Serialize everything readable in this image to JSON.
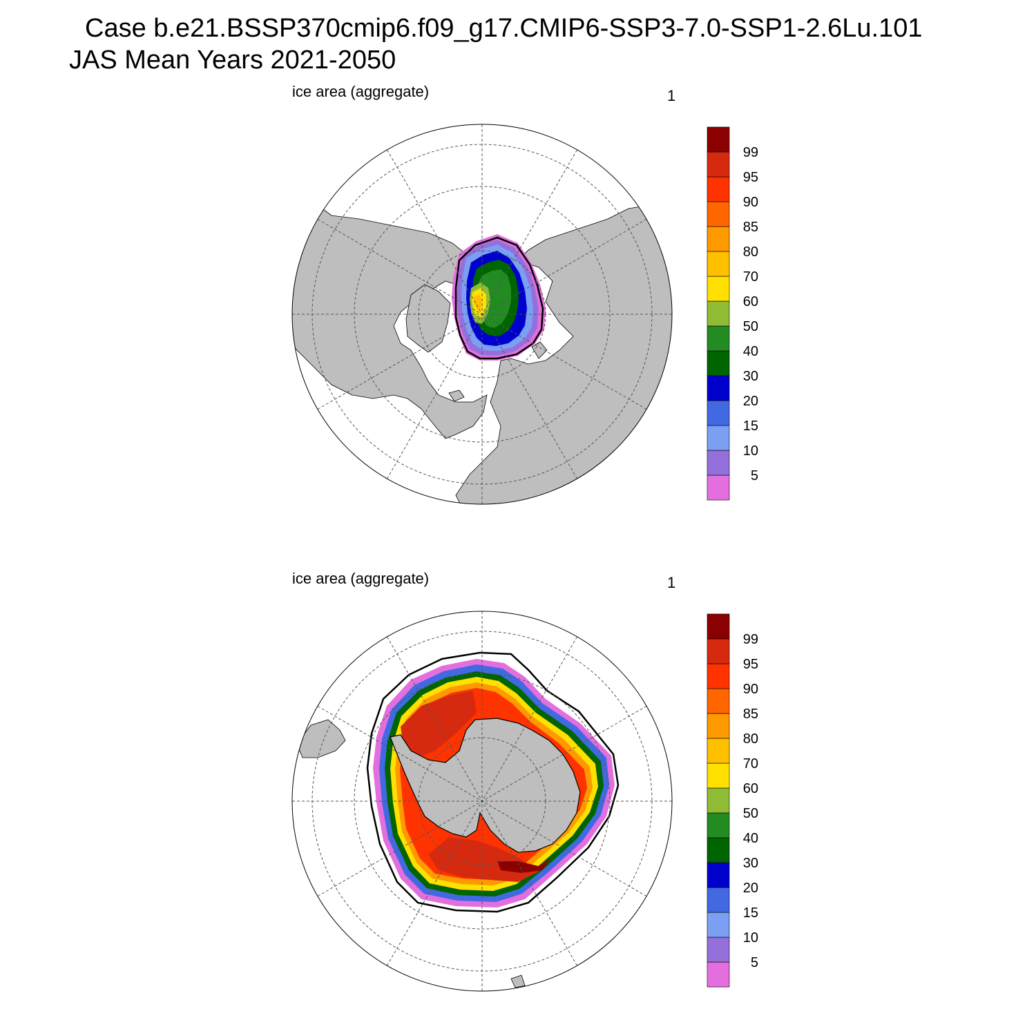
{
  "title": {
    "line1": "Case b.e21.BSSP370cmip6.f09_g17.CMIP6-SSP3-7.0-SSP1-2.6Lu.101",
    "line2": "JAS Mean   Years 2021-2050"
  },
  "panels": [
    {
      "id": "north",
      "left_label": "ice area  (aggregate)",
      "right_label": "1"
    },
    {
      "id": "south",
      "left_label": "ice area  (aggregate)",
      "right_label": "1"
    }
  ],
  "colorbar": {
    "tick_labels": [
      "5",
      "10",
      "15",
      "20",
      "30",
      "40",
      "50",
      "60",
      "70",
      "80",
      "85",
      "90",
      "95",
      "99"
    ],
    "colors_bottom_to_top": [
      "#e36fde",
      "#9370db",
      "#7b9ff2",
      "#4169e1",
      "#0000cd",
      "#006400",
      "#228b22",
      "#8fbc34",
      "#ffe000",
      "#ffc000",
      "#ff9900",
      "#ff6600",
      "#ff3300",
      "#d62a10",
      "#8b0000"
    ]
  },
  "colors": {
    "land": "#bebebe",
    "ocean": "#ffffff",
    "grid": "#555555",
    "ice_edge": "#000000"
  }
}
